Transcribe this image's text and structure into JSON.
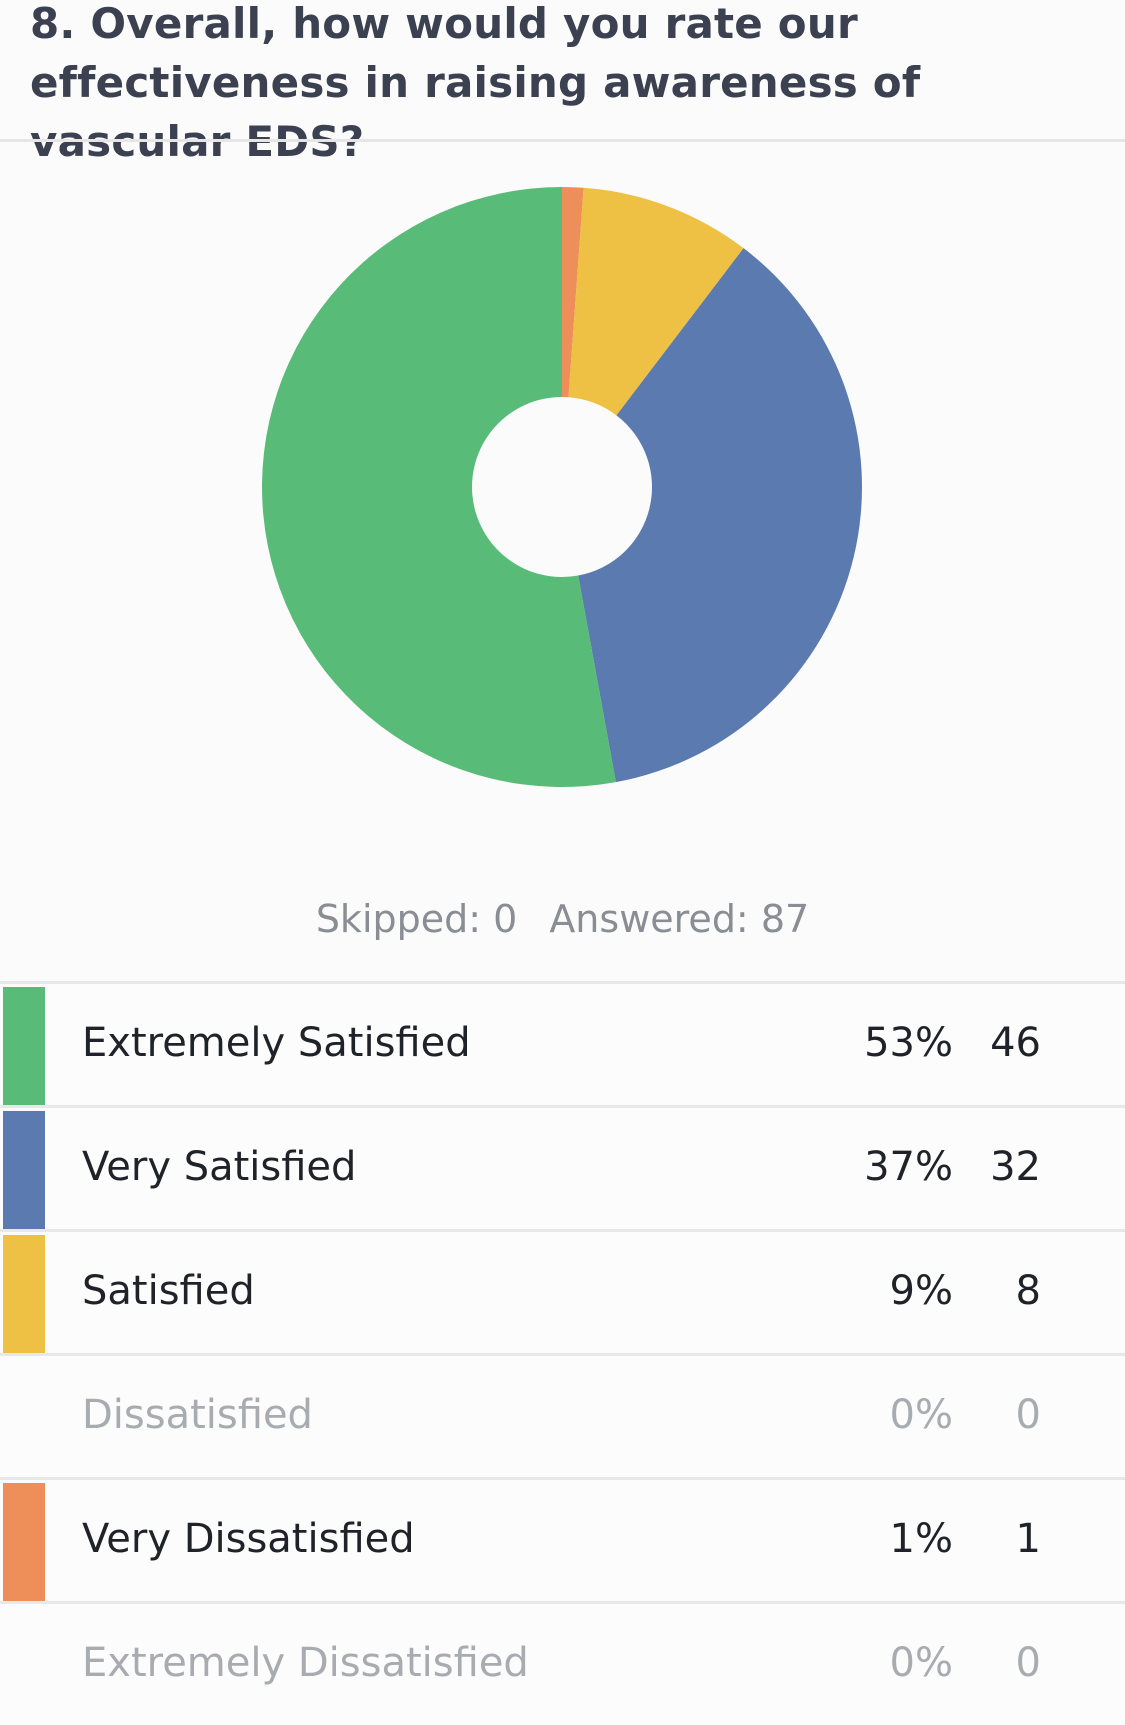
{
  "question": {
    "title": "8. Overall, how would you rate our effectiveness in raising awareness of vascular EDS?"
  },
  "summary": {
    "skipped": "Skipped: 0",
    "answered": "Answered: 87"
  },
  "table": {
    "rows": [
      {
        "label": "Extremely Satisfied",
        "percent": "53%",
        "count": "46",
        "color": "#58bb78"
      },
      {
        "label": "Very Satisfied",
        "percent": "37%",
        "count": "32",
        "color": "#5b7bb0"
      },
      {
        "label": "Satisfied",
        "percent": "9%",
        "count": "8",
        "color": "#eec044"
      },
      {
        "label": "Dissatisfied",
        "percent": "0%",
        "count": "0",
        "color": ""
      },
      {
        "label": "Very Dissatisfied",
        "percent": "1%",
        "count": "1",
        "color": "#ee8f5a"
      },
      {
        "label": "Extremely Dissatisfied",
        "percent": "0%",
        "count": "0",
        "color": ""
      }
    ]
  },
  "chart_data": {
    "type": "pie",
    "donut": true,
    "start": "top",
    "direction": "clockwise",
    "title": "",
    "slices": [
      {
        "label": "Very Dissatisfied",
        "value": 1,
        "color": "#ee8f5a"
      },
      {
        "label": "Satisfied",
        "value": 8,
        "color": "#eec044"
      },
      {
        "label": "Very Satisfied",
        "value": 32,
        "color": "#5b7bb0"
      },
      {
        "label": "Extremely Satisfied",
        "value": 46,
        "color": "#58bb78"
      }
    ],
    "legend": "none"
  }
}
